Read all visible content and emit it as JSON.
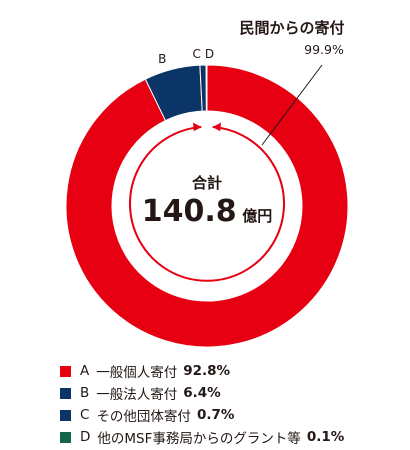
{
  "chart_data": {
    "type": "pie",
    "center_label": "合計",
    "total": {
      "value": "140.8",
      "unit": "億円"
    },
    "private_group": {
      "label": "民間からの寄付",
      "value": "99.9%"
    },
    "slices": [
      {
        "letter": "A",
        "name": "一般個人寄付",
        "value": 92.8,
        "display": "92.8%",
        "color": "#e60012"
      },
      {
        "letter": "B",
        "name": "一般法人寄付",
        "value": 6.4,
        "display": "6.4%",
        "color": "#0b3467"
      },
      {
        "letter": "C",
        "name": "その他団体寄付",
        "value": 0.7,
        "display": "0.7%",
        "color": "#0b3467"
      },
      {
        "letter": "D",
        "name": "他のMSF事務局からのグラント等",
        "value": 0.1,
        "display": "0.1%",
        "color": "#14664a"
      }
    ]
  }
}
